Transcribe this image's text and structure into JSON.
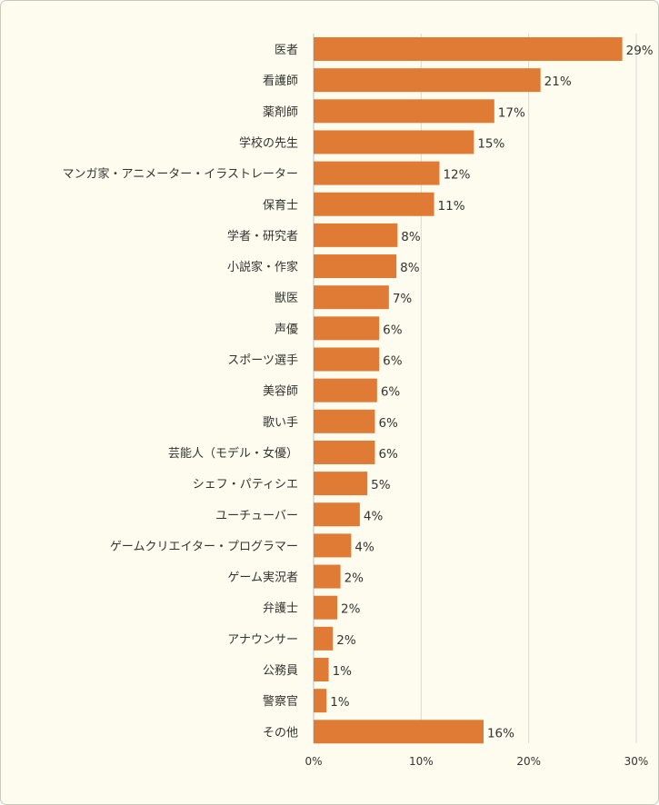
{
  "chart_data": {
    "type": "bar",
    "orientation": "horizontal",
    "categories": [
      "医者",
      "看護師",
      "薬剤師",
      "学校の先生",
      "マンガ家・アニメーター・イラストレーター",
      "保育士",
      "学者・研究者",
      "小説家・作家",
      "獣医",
      "声優",
      "スポーツ選手",
      "美容師",
      "歌い手",
      "芸能人（モデル・女優）",
      "シェフ・パティシエ",
      "ユーチューバー",
      "ゲームクリエイター・プログラマー",
      "ゲーム実況者",
      "弁護士",
      "アナウンサー",
      "公務員",
      "警察官",
      "その他"
    ],
    "values": [
      28.7,
      21.1,
      16.8,
      14.9,
      11.7,
      11.2,
      7.8,
      7.7,
      7.0,
      6.1,
      6.1,
      5.9,
      5.7,
      5.7,
      5.0,
      4.3,
      3.5,
      2.5,
      2.2,
      1.8,
      1.4,
      1.2,
      15.8
    ],
    "value_labels": [
      "29%",
      "21%",
      "17%",
      "15%",
      "12%",
      "11%",
      "8%",
      "8%",
      "7%",
      "6%",
      "6%",
      "6%",
      "6%",
      "6%",
      "5%",
      "4%",
      "4%",
      "2%",
      "2%",
      "2%",
      "1%",
      "1%",
      "16%"
    ],
    "xlim": [
      0,
      30
    ],
    "xticks": [
      0,
      10,
      20,
      30
    ],
    "xtick_labels": [
      "0%",
      "10%",
      "20%",
      "30%"
    ],
    "title": "",
    "xlabel": "",
    "ylabel": "",
    "grid": "vertical",
    "legend": "none",
    "bar_color": "#e07b35",
    "background_color": "#fdfcee"
  }
}
